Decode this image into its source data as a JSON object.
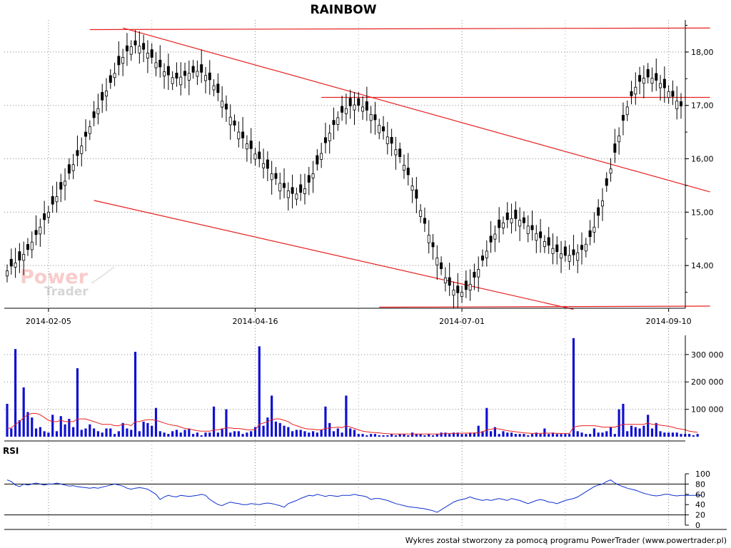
{
  "chart_data": [
    {
      "type": "candlestick",
      "title": "RAINBOW",
      "ylim": [
        13.2,
        18.6
      ],
      "y_ticks": [
        "14,00",
        "15,00",
        "16,00",
        "17,00",
        "18,00"
      ],
      "x_ticks": [
        {
          "label": "2014-02-05",
          "index": 10
        },
        {
          "label": "2014-04-16",
          "index": 60
        },
        {
          "label": "2014-07-01",
          "index": 110
        },
        {
          "label": "2014-09-10",
          "index": 160
        }
      ],
      "grid": true,
      "watermark": {
        "line1": "Power",
        "line2": "Trader"
      },
      "trendlines": [
        {
          "x1": 20,
          "y1": 18.42,
          "x2": 170,
          "y2": 18.45
        },
        {
          "x1": 28,
          "y1": 18.45,
          "x2": 170,
          "y2": 15.38
        },
        {
          "x1": 21,
          "y1": 15.22,
          "x2": 137,
          "y2": 13.18
        },
        {
          "x1": 76,
          "y1": 17.15,
          "x2": 170,
          "y2": 17.15
        },
        {
          "x1": 90,
          "y1": 13.22,
          "x2": 170,
          "y2": 13.24
        }
      ],
      "close": [
        13.9,
        13.99,
        14.05,
        14.1,
        14.21,
        14.3,
        14.44,
        14.58,
        14.72,
        14.86,
        15.0,
        15.15,
        15.29,
        15.43,
        15.58,
        15.73,
        15.89,
        16.06,
        16.24,
        16.42,
        16.6,
        16.77,
        16.94,
        17.1,
        17.27,
        17.43,
        17.6,
        17.76,
        17.9,
        18.02,
        18.1,
        18.13,
        18.11,
        18.05,
        17.98,
        17.9,
        17.8,
        17.72,
        17.63,
        17.57,
        17.52,
        17.51,
        17.53,
        17.56,
        17.6,
        17.62,
        17.64,
        17.62,
        17.56,
        17.48,
        17.37,
        17.24,
        17.08,
        16.93,
        16.78,
        16.63,
        16.5,
        16.39,
        16.28,
        16.19,
        16.09,
        16.0,
        15.91,
        15.82,
        15.72,
        15.63,
        15.54,
        15.46,
        15.4,
        15.35,
        15.34,
        15.37,
        15.44,
        15.56,
        15.72,
        15.9,
        16.1,
        16.3,
        16.48,
        16.64,
        16.77,
        16.87,
        16.94,
        16.99,
        17.01,
        17.0,
        16.97,
        16.91,
        16.83,
        16.73,
        16.63,
        16.52,
        16.41,
        16.29,
        16.17,
        16.04,
        15.88,
        15.7,
        15.49,
        15.26,
        15.03,
        14.79,
        14.57,
        14.35,
        14.14,
        13.94,
        13.77,
        13.63,
        13.54,
        13.49,
        13.5,
        13.55,
        13.65,
        13.78,
        13.93,
        14.1,
        14.27,
        14.44,
        14.59,
        14.71,
        14.8,
        14.86,
        14.88,
        14.88,
        14.85,
        14.8,
        14.74,
        14.67,
        14.6,
        14.52,
        14.45,
        14.38,
        14.32,
        14.26,
        14.22,
        14.19,
        14.19,
        14.2,
        14.24,
        14.3,
        14.4,
        14.54,
        14.72,
        14.94,
        15.21,
        15.5,
        15.81,
        16.12,
        16.43,
        16.72,
        16.97,
        17.18,
        17.34,
        17.45,
        17.51,
        17.53,
        17.51,
        17.47,
        17.41,
        17.33,
        17.26,
        17.17,
        17.08,
        16.99
      ],
      "open_offset": [
        -0.06,
        0.08,
        -0.05,
        0.1,
        -0.07,
        0.06,
        -0.09,
        0.05,
        -0.08,
        0.07,
        -0.06,
        0.09
      ],
      "ohlc_note": "",
      "volume": {
        "ylim": [
          0,
          370000
        ],
        "y_ticks": [
          "100 000",
          "200 000",
          "300 000"
        ],
        "values": [
          120000,
          30000,
          320000,
          60000,
          180000,
          90000,
          70000,
          30000,
          35000,
          20000,
          15000,
          80000,
          20000,
          75000,
          45000,
          65000,
          35000,
          250000,
          25000,
          30000,
          45000,
          30000,
          20000,
          15000,
          30000,
          30000,
          10000,
          20000,
          50000,
          30000,
          25000,
          310000,
          20000,
          55000,
          50000,
          40000,
          105000,
          20000,
          15000,
          10000,
          20000,
          25000,
          15000,
          25000,
          30000,
          10000,
          15000,
          5000,
          15000,
          15000,
          110000,
          15000,
          30000,
          100000,
          15000,
          20000,
          20000,
          10000,
          15000,
          20000,
          35000,
          330000,
          40000,
          70000,
          150000,
          55000,
          50000,
          40000,
          35000,
          20000,
          25000,
          25000,
          20000,
          15000,
          20000,
          15000,
          25000,
          110000,
          50000,
          20000,
          30000,
          15000,
          150000,
          30000,
          25000,
          10000,
          10000,
          5000,
          10000,
          10000,
          5000,
          5000,
          5000,
          10000,
          5000,
          10000,
          10000,
          5000,
          15000,
          10000,
          10000,
          5000,
          10000,
          5000,
          10000,
          15000,
          15000,
          10000,
          15000,
          15000,
          10000,
          10000,
          15000,
          15000,
          40000,
          20000,
          105000,
          20000,
          35000,
          10000,
          20000,
          15000,
          15000,
          10000,
          10000,
          10000,
          5000,
          10000,
          15000,
          10000,
          30000,
          10000,
          15000,
          10000,
          10000,
          10000,
          10000,
          360000,
          20000,
          15000,
          10000,
          10000,
          30000,
          15000,
          15000,
          20000,
          35000,
          10000,
          100000,
          120000,
          20000,
          40000,
          35000,
          30000,
          40000,
          80000,
          30000,
          50000,
          20000,
          15000,
          15000,
          15000,
          15000,
          10000,
          10000,
          10000,
          5000,
          10000
        ],
        "ma": [
          30000,
          32000,
          45000,
          55000,
          70000,
          80000,
          85000,
          85000,
          80000,
          70000,
          60000,
          55000,
          55000,
          60000,
          55000,
          55000,
          55000,
          65000,
          65000,
          65000,
          60000,
          55000,
          50000,
          45000,
          45000,
          45000,
          40000,
          40000,
          45000,
          45000,
          40000,
          55000,
          55000,
          60000,
          62000,
          62000,
          60000,
          55000,
          50000,
          45000,
          42000,
          40000,
          35000,
          30000,
          28000,
          25000,
          22000,
          20000,
          20000,
          20000,
          25000,
          25000,
          28000,
          32000,
          32000,
          30000,
          30000,
          28000,
          25000,
          25000,
          25000,
          45000,
          50000,
          55000,
          62000,
          65000,
          65000,
          60000,
          55000,
          45000,
          40000,
          35000,
          30000,
          28000,
          27000,
          25000,
          25000,
          30000,
          32000,
          33000,
          35000,
          33000,
          40000,
          35000,
          30000,
          25000,
          20000,
          18000,
          16000,
          15000,
          14000,
          12000,
          11000,
          10000,
          10000,
          10000,
          10000,
          10000,
          10000,
          10000,
          10000,
          10000,
          10000,
          10000,
          10000,
          10000,
          12000,
          12000,
          12000,
          12000,
          13000,
          13000,
          13000,
          13000,
          15000,
          17000,
          25000,
          27000,
          30000,
          28000,
          25000,
          22000,
          20000,
          18000,
          16000,
          14000,
          13000,
          12000,
          12000,
          12000,
          13000,
          13000,
          13000,
          12000,
          12000,
          12000,
          11000,
          35000,
          38000,
          40000,
          40000,
          40000,
          40000,
          38000,
          35000,
          35000,
          35000,
          35000,
          40000,
          45000,
          45000,
          45000,
          45000,
          45000,
          45000,
          50000,
          45000,
          45000,
          42000,
          40000,
          38000,
          35000,
          30000,
          28000,
          25000,
          20000,
          18000,
          16000
        ]
      },
      "rsi": {
        "label": "RSI",
        "ylim": [
          0,
          100
        ],
        "y_ticks": [
          "0",
          "20",
          "40",
          "60",
          "80",
          "100"
        ],
        "levels": [
          20,
          80
        ],
        "values": [
          88,
          85,
          78,
          75,
          80,
          78,
          80,
          82,
          80,
          78,
          80,
          80,
          82,
          80,
          78,
          76,
          77,
          75,
          74,
          73,
          72,
          73,
          72,
          74,
          76,
          78,
          80,
          78,
          76,
          72,
          70,
          72,
          73,
          72,
          70,
          65,
          60,
          50,
          55,
          58,
          56,
          55,
          58,
          57,
          56,
          57,
          58,
          60,
          58,
          50,
          45,
          40,
          38,
          42,
          45,
          43,
          42,
          40,
          40,
          42,
          41,
          40,
          42,
          43,
          42,
          40,
          38,
          35,
          42,
          45,
          48,
          52,
          55,
          58,
          57,
          60,
          58,
          56,
          58,
          57,
          56,
          58,
          58,
          58,
          60,
          58,
          57,
          55,
          50,
          52,
          52,
          50,
          48,
          45,
          42,
          40,
          38,
          36,
          35,
          34,
          33,
          32,
          30,
          28,
          25,
          30,
          35,
          40,
          45,
          48,
          50,
          52,
          55,
          52,
          50,
          48,
          50,
          48,
          50,
          52,
          50,
          48,
          52,
          50,
          48,
          45,
          42,
          45,
          48,
          50,
          48,
          45,
          44,
          42,
          45,
          48,
          50,
          52,
          55,
          60,
          65,
          70,
          75,
          78,
          80,
          85,
          88,
          82,
          78,
          75,
          72,
          70,
          68,
          65,
          62,
          60,
          58,
          57,
          58,
          60,
          60,
          58,
          57,
          58,
          58,
          58,
          58,
          58,
          58
        ]
      }
    }
  ],
  "footer": "Wykres został stworzony za pomocą programu PowerTrader (www.powertrader.pl)"
}
